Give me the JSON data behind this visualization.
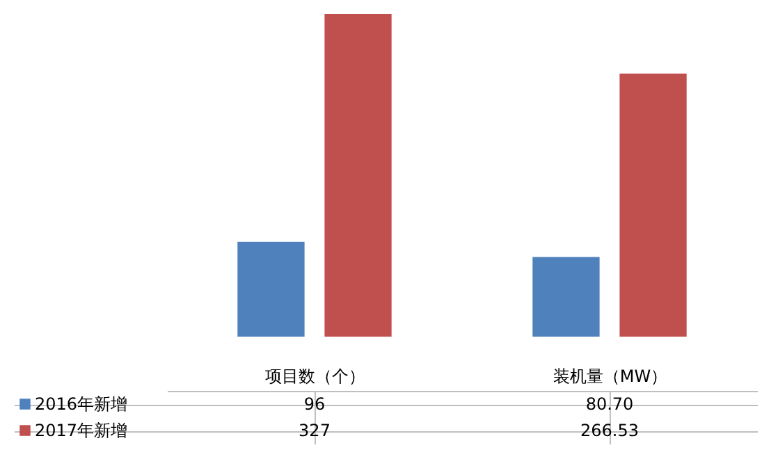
{
  "chart_data": {
    "type": "bar",
    "categories": [
      "项目数（个）",
      "装机量（MW）"
    ],
    "series": [
      {
        "name": "2016年新增",
        "color": "#4f81bd",
        "values": [
          96,
          80.7
        ],
        "value_labels": [
          "96",
          "80.70"
        ]
      },
      {
        "name": "2017年新增",
        "color": "#c0504d",
        "values": [
          327,
          266.53
        ],
        "value_labels": [
          "327",
          "266.53"
        ]
      }
    ],
    "legend": "bottom left",
    "grid": false
  }
}
